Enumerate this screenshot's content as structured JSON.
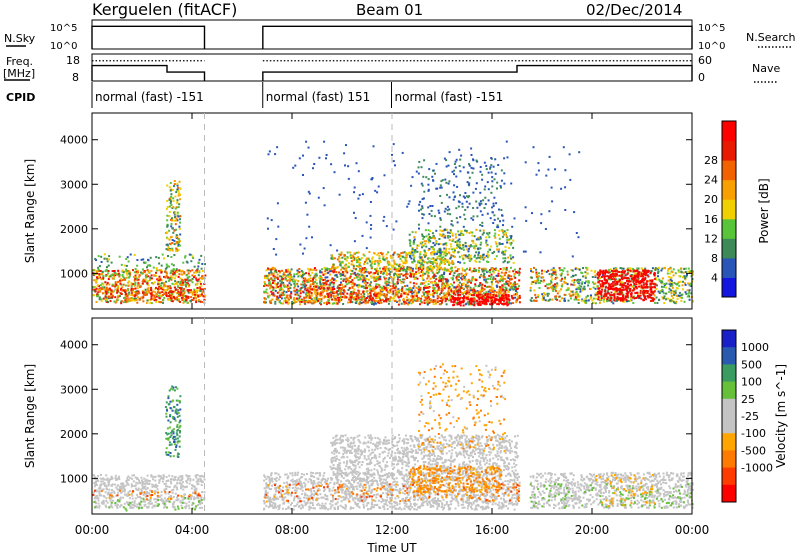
{
  "header": {
    "site": "Kerguelen (fitACF)",
    "beam": "Beam 01",
    "date": "02/Dec/2014"
  },
  "left_labels": {
    "nsky": "N.Sky",
    "nsky_top": "10^5",
    "nsky_bottom": "10^0",
    "freq": "Freq.",
    "freq_unit": "[MHz]",
    "freq_top": "18",
    "freq_bottom": "8",
    "cpid": "CPID"
  },
  "right_labels": {
    "nsearch": "N.Search",
    "nsearch_top": "10^5",
    "nsearch_bottom": "10^0",
    "nave": "Nave",
    "nave_top": "60",
    "nave_bottom": "0"
  },
  "cpid_segments": [
    {
      "label": "normal (fast) -151"
    },
    {
      "label": "normal (fast) 151"
    },
    {
      "label": "normal (fast) -151"
    }
  ],
  "colors": {
    "power": [
      "#1515e0",
      "#2a55b8",
      "#3d8a58",
      "#58c43a",
      "#f0d000",
      "#f7a000",
      "#f26200",
      "#e81a00",
      "#ff0000"
    ],
    "velocity": [
      "#ff0000",
      "#ff3b00",
      "#ff7a00",
      "#ffa500",
      "#c4c4c4",
      "#c4c4c4",
      "#66c03a",
      "#3a9c60",
      "#2a5ab0",
      "#1a20c8"
    ]
  },
  "chart_data": [
    {
      "type": "line",
      "name": "status-sky-search",
      "x_range": [
        "00:00",
        "24:00"
      ],
      "series": [
        {
          "name": "N.Sky",
          "y_scale": "log",
          "ylim": [
            1,
            100000
          ],
          "segments": [
            {
              "x": [
                "00:00",
                "04:30"
              ],
              "y": 8000
            },
            {
              "x": [
                "06:50",
                "24:00"
              ],
              "y": 8000
            }
          ]
        },
        {
          "name": "N.Search",
          "style": "dotted"
        }
      ]
    },
    {
      "type": "line",
      "name": "status-freq-nave",
      "x_range": [
        "00:00",
        "24:00"
      ],
      "series": [
        {
          "name": "Freq.",
          "unit": "MHz",
          "ylim": [
            8,
            18
          ],
          "segments": [
            {
              "x": [
                "00:00",
                "03:00"
              ],
              "y": 13.7
            },
            {
              "x": [
                "03:00",
                "04:30"
              ],
              "y": 11.3
            },
            {
              "x": [
                "06:50",
                "17:00"
              ],
              "y": 11.3
            },
            {
              "x": [
                "17:00",
                "24:00"
              ],
              "y": 13.7
            }
          ]
        },
        {
          "name": "Nave",
          "ylim": [
            0,
            60
          ],
          "style": "dotted",
          "value": 45
        }
      ]
    },
    {
      "type": "heatmap",
      "name": "power",
      "xlabel": "Time UT",
      "ylabel": "Slant Range [km]",
      "xlim": [
        "00:00",
        "24:00"
      ],
      "ylim": [
        200,
        4600
      ],
      "x_ticks": [
        "00:00",
        "04:00",
        "08:00",
        "12:00",
        "16:00",
        "20:00",
        "00:00"
      ],
      "y_ticks": [
        1000,
        2000,
        3000,
        4000
      ],
      "colorbar": {
        "label": "Power [dB]",
        "ticks": [
          4,
          8,
          12,
          16,
          20,
          24,
          28
        ]
      }
    },
    {
      "type": "heatmap",
      "name": "velocity",
      "xlabel": "Time UT",
      "ylabel": "Slant Range [km]",
      "xlim": [
        "00:00",
        "24:00"
      ],
      "ylim": [
        200,
        4600
      ],
      "x_ticks": [
        "00:00",
        "04:00",
        "08:00",
        "12:00",
        "16:00",
        "20:00",
        "00:00"
      ],
      "y_ticks": [
        1000,
        2000,
        3000,
        4000
      ],
      "colorbar": {
        "label": "Velocity [m s^-1]",
        "ticks": [
          1000,
          500,
          100,
          25,
          -25,
          -100,
          -500,
          -1000
        ]
      }
    }
  ],
  "scatter_power": [
    {
      "x": [
        "00:00",
        "04:30"
      ],
      "y": [
        350,
        1100
      ],
      "v": [
        2,
        8
      ],
      "d": 0.75
    },
    {
      "x": [
        "00:00",
        "04:30"
      ],
      "y": [
        1100,
        1450
      ],
      "v": [
        1,
        4
      ],
      "d": 0.2
    },
    {
      "x": [
        "00:20",
        "04:00"
      ],
      "y": [
        450,
        700
      ],
      "v": [
        5,
        8
      ],
      "d": 0.45
    },
    {
      "x": [
        "02:55",
        "03:30"
      ],
      "y": [
        1500,
        3100
      ],
      "v": [
        1,
        6
      ],
      "d": 0.55
    },
    {
      "x": [
        "06:50",
        "17:05"
      ],
      "y": [
        320,
        1150
      ],
      "v": [
        1,
        8
      ],
      "d": 0.75
    },
    {
      "x": [
        "08:30",
        "16:30"
      ],
      "y": [
        400,
        700
      ],
      "v": [
        4,
        8
      ],
      "d": 0.45
    },
    {
      "x": [
        "09:30",
        "14:30"
      ],
      "y": [
        1100,
        1500
      ],
      "v": [
        2,
        6
      ],
      "d": 0.55
    },
    {
      "x": [
        "12:40",
        "16:50"
      ],
      "y": [
        1250,
        2000
      ],
      "v": [
        1,
        5
      ],
      "d": 0.45
    },
    {
      "x": [
        "13:00",
        "16:30"
      ],
      "y": [
        2000,
        3600
      ],
      "v": [
        1,
        2
      ],
      "d": 0.12
    },
    {
      "x": [
        "14:20",
        "16:40"
      ],
      "y": [
        300,
        550
      ],
      "v": [
        8,
        9
      ],
      "d": 0.9
    },
    {
      "x": [
        "17:30",
        "19:20"
      ],
      "y": [
        400,
        1150
      ],
      "v": [
        1,
        7
      ],
      "d": 0.5
    },
    {
      "x": [
        "19:20",
        "24:00"
      ],
      "y": [
        350,
        1150
      ],
      "v": [
        1,
        5
      ],
      "d": 0.5
    },
    {
      "x": [
        "20:10",
        "22:30"
      ],
      "y": [
        400,
        1100
      ],
      "v": [
        7,
        9
      ],
      "d": 0.92
    },
    {
      "x": [
        "06:50",
        "19:30"
      ],
      "y": [
        1400,
        4000
      ],
      "v": [
        1,
        1
      ],
      "d": 0.02
    }
  ],
  "scatter_velocity": [
    {
      "x": [
        "00:00",
        "04:30"
      ],
      "y": [
        350,
        1100
      ],
      "v": [
        4,
        5
      ],
      "d": 0.6
    },
    {
      "x": [
        "00:00",
        "04:30"
      ],
      "y": [
        550,
        750
      ],
      "v": [
        1,
        3
      ],
      "d": 0.15
    },
    {
      "x": [
        "00:00",
        "04:30"
      ],
      "y": [
        300,
        600
      ],
      "v": [
        6,
        6
      ],
      "d": 0.1
    },
    {
      "x": [
        "02:55",
        "03:30"
      ],
      "y": [
        1500,
        3100
      ],
      "v": [
        6,
        8
      ],
      "d": 0.45
    },
    {
      "x": [
        "06:50",
        "17:05"
      ],
      "y": [
        320,
        1150
      ],
      "v": [
        4,
        5
      ],
      "d": 0.6
    },
    {
      "x": [
        "06:50",
        "17:05"
      ],
      "y": [
        500,
        900
      ],
      "v": [
        1,
        3
      ],
      "d": 0.15
    },
    {
      "x": [
        "09:30",
        "17:00"
      ],
      "y": [
        1100,
        2000
      ],
      "v": [
        4,
        5
      ],
      "d": 0.55
    },
    {
      "x": [
        "12:40",
        "16:20"
      ],
      "y": [
        700,
        1300
      ],
      "v": [
        2,
        3
      ],
      "d": 0.5
    },
    {
      "x": [
        "13:00",
        "16:30"
      ],
      "y": [
        1600,
        3600
      ],
      "v": [
        2,
        4
      ],
      "d": 0.12
    },
    {
      "x": [
        "17:30",
        "24:00"
      ],
      "y": [
        350,
        1150
      ],
      "v": [
        4,
        5
      ],
      "d": 0.55
    },
    {
      "x": [
        "17:30",
        "24:00"
      ],
      "y": [
        350,
        900
      ],
      "v": [
        6,
        6
      ],
      "d": 0.1
    },
    {
      "x": [
        "20:00",
        "22:30"
      ],
      "y": [
        400,
        1100
      ],
      "v": [
        3,
        3
      ],
      "d": 0.12
    }
  ]
}
